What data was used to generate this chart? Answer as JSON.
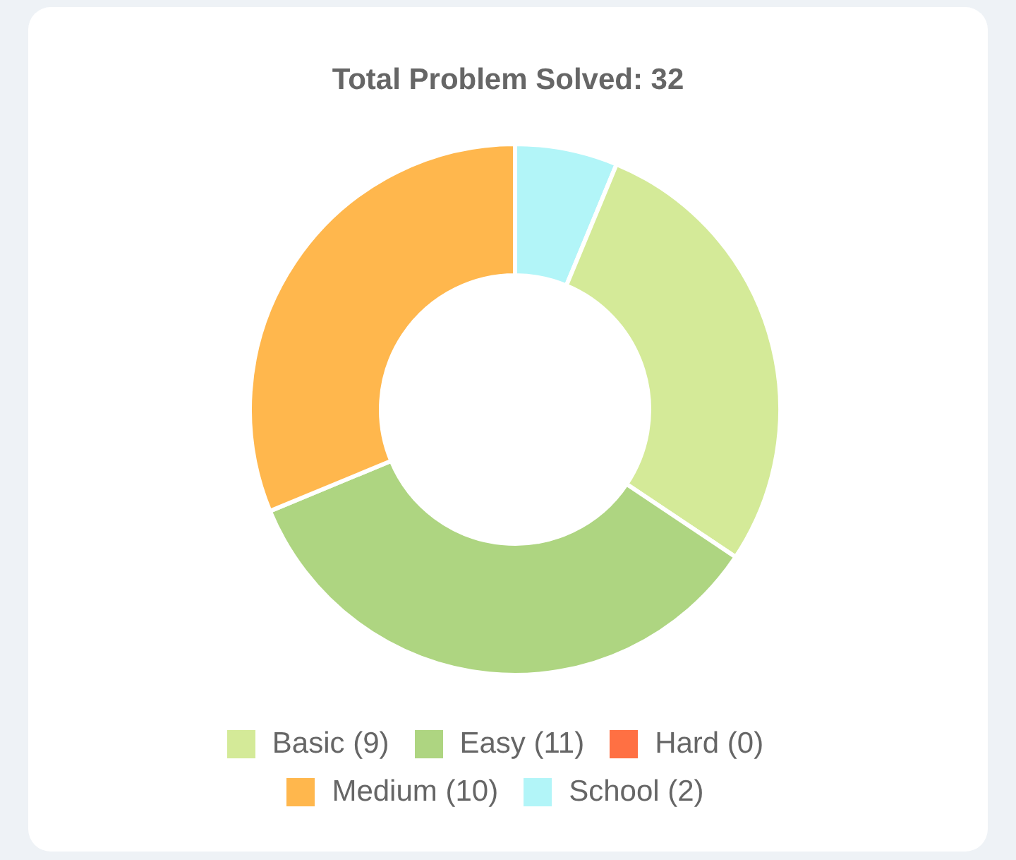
{
  "chart_data": {
    "type": "donut",
    "title": "Total Problem Solved: 32",
    "categories": [
      "School (2)",
      "Basic (9)",
      "Easy (11)",
      "Medium (10)",
      "Hard (0)"
    ],
    "values": [
      2,
      9,
      11,
      10,
      0
    ],
    "colors": [
      "#b2f5f8",
      "#d4ea98",
      "#aed581",
      "#ffb74d",
      "#ff7043"
    ],
    "legend": "bottom"
  }
}
